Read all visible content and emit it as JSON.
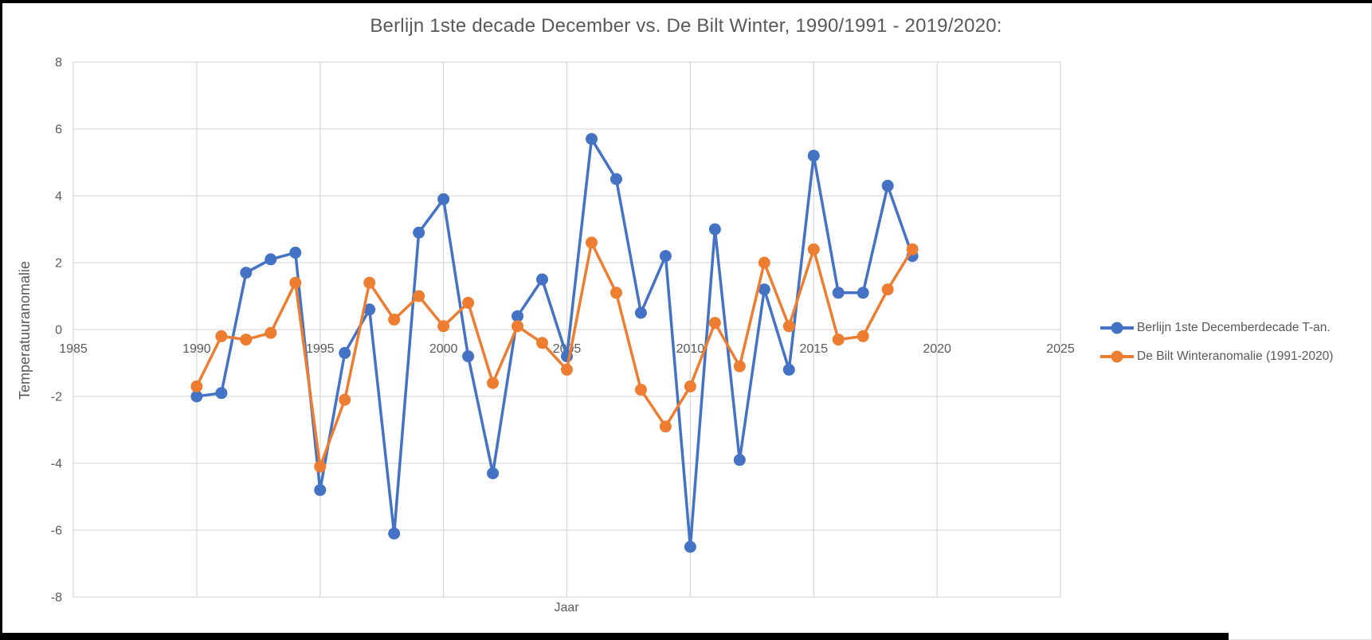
{
  "title": "Berlijn 1ste decade December vs. De Bilt Winter, 1990/1991 - 2019/2020:",
  "colors": {
    "series_blue": "#4472C4",
    "series_orange": "#ED7D31",
    "gridline": "#D9D9D9",
    "text": "#595959",
    "frame_black": "#000000"
  },
  "chart_data": {
    "type": "line",
    "title": "Berlijn 1ste decade December vs. De Bilt Winter, 1990/1991 - 2019/2020:",
    "xlabel": "Jaar",
    "ylabel": "Temperatuuranomalie",
    "xlim": [
      1985,
      2025
    ],
    "ylim": [
      -8,
      8
    ],
    "x_ticks": [
      1985,
      1990,
      1995,
      2000,
      2005,
      2010,
      2015,
      2020,
      2025
    ],
    "y_ticks": [
      8,
      6,
      4,
      2,
      0,
      -2,
      -4,
      -6,
      -8
    ],
    "grid": true,
    "legend_position": "right",
    "marker": "circle",
    "x": [
      1990,
      1991,
      1992,
      1993,
      1994,
      1995,
      1996,
      1997,
      1998,
      1999,
      2000,
      2001,
      2002,
      2003,
      2004,
      2005,
      2006,
      2007,
      2008,
      2009,
      2010,
      2011,
      2012,
      2013,
      2014,
      2015,
      2016,
      2017,
      2018,
      2019
    ],
    "series": [
      {
        "name": "Berlijn 1ste Decemberdecade T-an.",
        "color": "#4472C4",
        "values": [
          -2.0,
          -1.9,
          1.7,
          2.1,
          2.3,
          -4.8,
          -0.7,
          0.6,
          -6.1,
          2.9,
          3.9,
          -0.8,
          -4.3,
          0.4,
          1.5,
          -0.8,
          5.7,
          4.5,
          0.5,
          2.2,
          -6.5,
          3.0,
          -3.9,
          1.2,
          -1.2,
          5.2,
          1.1,
          1.1,
          4.3,
          2.2
        ]
      },
      {
        "name": "De Bilt Winteranomalie (1991-2020)",
        "color": "#ED7D31",
        "values": [
          -1.7,
          -0.2,
          -0.3,
          -0.1,
          1.4,
          -4.1,
          -2.1,
          1.4,
          0.3,
          1.0,
          0.1,
          0.8,
          -1.6,
          0.1,
          -0.4,
          -1.2,
          2.6,
          1.1,
          -1.8,
          -2.9,
          -1.7,
          0.2,
          -1.1,
          2.0,
          0.1,
          2.4,
          -0.3,
          -0.2,
          1.2,
          2.4
        ]
      }
    ]
  }
}
